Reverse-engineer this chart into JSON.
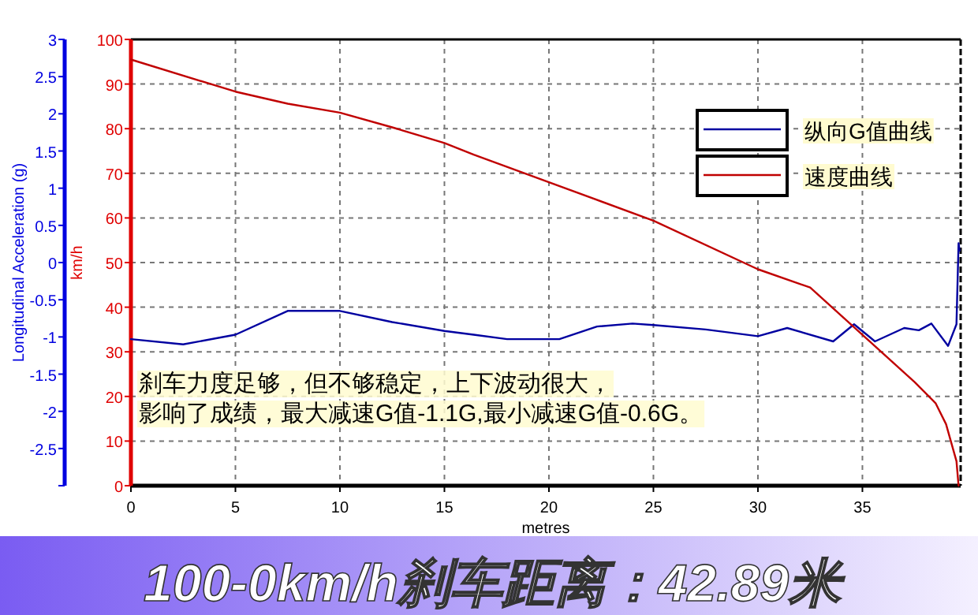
{
  "chart_data": {
    "type": "line",
    "title": "100-0km/h刹车距离：42.89米",
    "xlabel": "metres",
    "ylabel": "km/h",
    "y2label": "Longitudinal Acceleration (g)",
    "annotations": [
      "刹车力度足够，但不够稳定，上下波动很大，",
      "影响了成绩，最大减速G值-1.1G,最小减速G值-0.6G。"
    ],
    "series": [
      {
        "name": "纵向G值曲线",
        "color": "#0000a0",
        "axis": "y2",
        "x": [
          0,
          2.5,
          5,
          7.5,
          10,
          12.5,
          15,
          16.4,
          18,
          20.5,
          22.3,
          24,
          25,
          27.5,
          30,
          31.4,
          33.6,
          34.6,
          35.6,
          37,
          37.7,
          38.3,
          39.1,
          39.5,
          39.6,
          39.65
        ],
        "values": [
          -1.03,
          -1.1,
          -0.97,
          -0.65,
          -0.65,
          -0.8,
          -0.92,
          -0.97,
          -1.03,
          -1.03,
          -0.86,
          -0.82,
          -0.84,
          -0.9,
          -0.99,
          -0.88,
          -1.06,
          -0.83,
          -1.06,
          -0.88,
          -0.91,
          -0.82,
          -1.12,
          -0.83,
          0.26,
          0.16
        ]
      },
      {
        "name": "速度曲线",
        "color": "#c00000",
        "x": [
          0,
          5,
          7.5,
          10,
          12.5,
          15,
          16.4,
          20,
          25,
          30,
          32.5,
          35,
          37.5,
          38.5,
          39,
          39.5,
          39.6
        ],
        "values": [
          95.5,
          88.3,
          85.6,
          83.6,
          80.3,
          76.8,
          74.2,
          68,
          59.4,
          48.5,
          44.4,
          33.8,
          23.2,
          18.5,
          13.8,
          5.5,
          0
        ]
      }
    ],
    "xlim": [
      0,
      39.7
    ],
    "xticks": [
      0,
      5,
      10,
      15,
      20,
      25,
      30,
      35
    ],
    "ylim": [
      0,
      100
    ],
    "yticks": [
      0,
      10,
      20,
      30,
      40,
      50,
      60,
      70,
      80,
      90,
      100
    ],
    "y2lim": [
      -3,
      3
    ],
    "y2ticks": [
      {
        "value": -3,
        "label": null
      },
      -2.5,
      -2,
      -1.5,
      -1,
      -0.5,
      0,
      0.5,
      1,
      1.5,
      2,
      2.5,
      3
    ],
    "grid": true,
    "legend": "top right"
  }
}
